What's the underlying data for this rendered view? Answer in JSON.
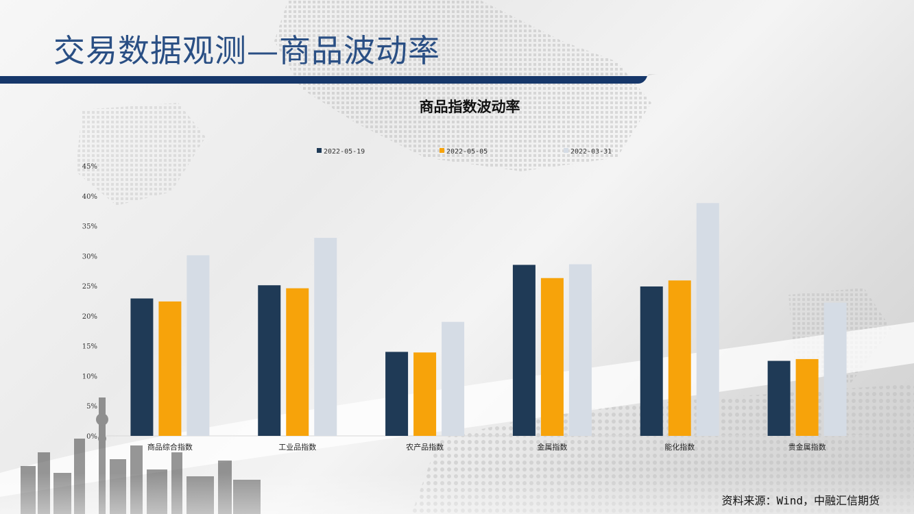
{
  "slide": {
    "title": "交易数据观测—商品波动率",
    "source": "资料来源：Wind，中融汇信期货"
  },
  "colors": {
    "title_text": "#2a4f84",
    "band": "#16376a",
    "series_1": "#1f3a56",
    "series_2": "#f7a30a",
    "series_3": "#d5dce5"
  },
  "chart_data": {
    "type": "bar",
    "title": "商品指数波动率",
    "categories": [
      "商品综合指数",
      "工业品指数",
      "农产品指数",
      "金属指数",
      "能化指数",
      "贵金属指数"
    ],
    "series": [
      {
        "name": "2022-05-19",
        "values": [
          22.9,
          25.1,
          14.0,
          28.5,
          24.9,
          12.5
        ]
      },
      {
        "name": "2022-05-05",
        "values": [
          22.4,
          24.6,
          13.9,
          26.3,
          25.9,
          12.8
        ]
      },
      {
        "name": "2022-03-31",
        "values": [
          30.1,
          33.0,
          19.0,
          28.6,
          38.8,
          22.2
        ]
      }
    ],
    "ylim": [
      0,
      45
    ],
    "yticks": [
      "0%",
      "5%",
      "10%",
      "15%",
      "20%",
      "25%",
      "30%",
      "35%",
      "40%",
      "45%"
    ],
    "xlabel": "",
    "ylabel": "",
    "legend": "top",
    "grid": false
  }
}
